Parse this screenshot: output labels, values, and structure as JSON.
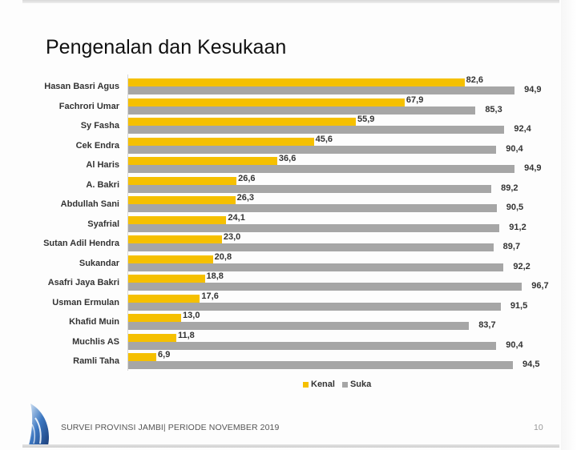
{
  "slide": {
    "title": "Pengenalan dan Kesukaan",
    "footer_text": "SURVEI PROVINSI JAMBI| PERIODE NOVEMBER 2019",
    "page_number": "10",
    "logo_icon": "sail-logo-icon"
  },
  "colors": {
    "kenal": "#f5c000",
    "suka": "#a6a6a6"
  },
  "legend": {
    "kenal": "Kenal",
    "suka": "Suka"
  },
  "rows": [
    {
      "name": "Hasan Basri Agus",
      "kenal": "82,6",
      "suka": "94,9"
    },
    {
      "name": "Fachrori Umar",
      "kenal": "67,9",
      "suka": "85,3"
    },
    {
      "name": "Sy Fasha",
      "kenal": "55,9",
      "suka": "92,4"
    },
    {
      "name": "Cek Endra",
      "kenal": "45,6",
      "suka": "90,4"
    },
    {
      "name": "Al Haris",
      "kenal": "36,6",
      "suka": "94,9"
    },
    {
      "name": "A. Bakri",
      "kenal": "26,6",
      "suka": "89,2"
    },
    {
      "name": "Abdullah Sani",
      "kenal": "26,3",
      "suka": "90,5"
    },
    {
      "name": "Syafrial",
      "kenal": "24,1",
      "suka": "91,2"
    },
    {
      "name": "Sutan Adil Hendra",
      "kenal": "23,0",
      "suka": "89,7"
    },
    {
      "name": "Sukandar",
      "kenal": "20,8",
      "suka": "92,2"
    },
    {
      "name": "Asafri Jaya Bakri",
      "kenal": "18,8",
      "suka": "96,7"
    },
    {
      "name": "Usman Ermulan",
      "kenal": "17,6",
      "suka": "91,5"
    },
    {
      "name": "Khafid Muin",
      "kenal": "13,0",
      "suka": "83,7"
    },
    {
      "name": "Muchlis AS",
      "kenal": "11,8",
      "suka": "90,4"
    },
    {
      "name": "Ramli Taha",
      "kenal": "6,9",
      "suka": "94,5"
    }
  ],
  "chart_data": {
    "type": "bar",
    "orientation": "horizontal",
    "title": "Pengenalan dan Kesukaan",
    "xlabel": "",
    "ylabel": "",
    "categories": [
      "Hasan Basri Agus",
      "Fachrori Umar",
      "Sy Fasha",
      "Cek Endra",
      "Al Haris",
      "A. Bakri",
      "Abdullah Sani",
      "Syafrial",
      "Sutan Adil Hendra",
      "Sukandar",
      "Asafri Jaya Bakri",
      "Usman Ermulan",
      "Khafid Muin",
      "Muchlis AS",
      "Ramli Taha"
    ],
    "series": [
      {
        "name": "Kenal",
        "color": "#f5c000",
        "values": [
          82.6,
          67.9,
          55.9,
          45.6,
          36.6,
          26.6,
          26.3,
          24.1,
          23.0,
          20.8,
          18.8,
          17.6,
          13.0,
          11.8,
          6.9
        ]
      },
      {
        "name": "Suka",
        "color": "#a6a6a6",
        "values": [
          94.9,
          85.3,
          92.4,
          90.4,
          94.9,
          89.2,
          90.5,
          91.2,
          89.7,
          92.2,
          96.7,
          91.5,
          83.7,
          90.4,
          94.5
        ]
      }
    ],
    "xlim": [
      0,
      100
    ],
    "grid": false,
    "legend_position": "bottom",
    "data_labels": true
  }
}
